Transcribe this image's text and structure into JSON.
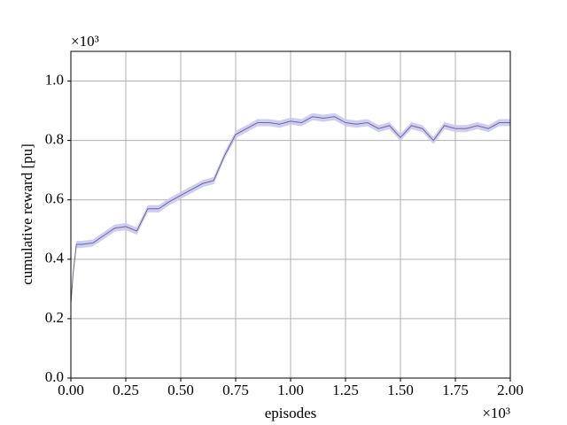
{
  "chart_data": {
    "type": "line",
    "x_label": "episodes",
    "y_label": "cumulative reward [pu]",
    "x_multiplier": "×10³",
    "y_multiplier": "×10³",
    "x": [
      0,
      0.01,
      0.025,
      0.05,
      0.1,
      0.15,
      0.2,
      0.25,
      0.3,
      0.35,
      0.4,
      0.45,
      0.5,
      0.55,
      0.6,
      0.65,
      0.7,
      0.75,
      0.8,
      0.85,
      0.9,
      0.95,
      1.0,
      1.05,
      1.1,
      1.15,
      1.2,
      1.25,
      1.3,
      1.35,
      1.4,
      1.45,
      1.5,
      1.55,
      1.6,
      1.65,
      1.7,
      1.75,
      1.8,
      1.85,
      1.9,
      1.95,
      2.0
    ],
    "values": [
      0.25,
      0.35,
      0.45,
      0.45,
      0.455,
      0.48,
      0.505,
      0.51,
      0.495,
      0.57,
      0.57,
      0.595,
      0.615,
      0.635,
      0.655,
      0.665,
      0.75,
      0.82,
      0.84,
      0.86,
      0.86,
      0.855,
      0.865,
      0.86,
      0.88,
      0.875,
      0.88,
      0.86,
      0.855,
      0.86,
      0.84,
      0.85,
      0.81,
      0.85,
      0.84,
      0.8,
      0.85,
      0.84,
      0.84,
      0.85,
      0.84,
      0.86,
      0.86
    ],
    "lower": [
      0.238,
      0.338,
      0.438,
      0.438,
      0.443,
      0.468,
      0.493,
      0.498,
      0.483,
      0.558,
      0.558,
      0.583,
      0.603,
      0.623,
      0.643,
      0.653,
      0.738,
      0.808,
      0.828,
      0.848,
      0.848,
      0.843,
      0.853,
      0.848,
      0.868,
      0.863,
      0.868,
      0.848,
      0.843,
      0.848,
      0.828,
      0.838,
      0.798,
      0.838,
      0.828,
      0.788,
      0.838,
      0.828,
      0.828,
      0.838,
      0.828,
      0.848,
      0.848
    ],
    "upper": [
      0.262,
      0.362,
      0.462,
      0.462,
      0.467,
      0.492,
      0.517,
      0.522,
      0.507,
      0.582,
      0.582,
      0.607,
      0.627,
      0.647,
      0.667,
      0.677,
      0.762,
      0.832,
      0.852,
      0.872,
      0.872,
      0.867,
      0.877,
      0.872,
      0.892,
      0.887,
      0.892,
      0.872,
      0.867,
      0.872,
      0.852,
      0.862,
      0.822,
      0.862,
      0.852,
      0.812,
      0.862,
      0.852,
      0.852,
      0.862,
      0.852,
      0.872,
      0.872
    ],
    "color": "#6b6b8a",
    "band_color": "#c8c8f5",
    "xlim": [
      0,
      2.0
    ],
    "ylim": [
      0,
      1.1
    ],
    "xticks": [
      {
        "value": 0,
        "label": "0.00"
      },
      0.25,
      {
        "value": 0.5,
        "label": "0.50"
      },
      0.75,
      {
        "value": 1.0,
        "label": "1.00"
      },
      1.25,
      {
        "value": 1.5,
        "label": "1.50"
      },
      1.75,
      {
        "value": 2.0,
        "label": "2.00"
      }
    ],
    "yticks": [
      {
        "value": 0,
        "label": "0.0"
      },
      0.2,
      0.4,
      0.6,
      0.8,
      {
        "value": 1.0,
        "label": "1.0"
      }
    ],
    "grid": true
  }
}
